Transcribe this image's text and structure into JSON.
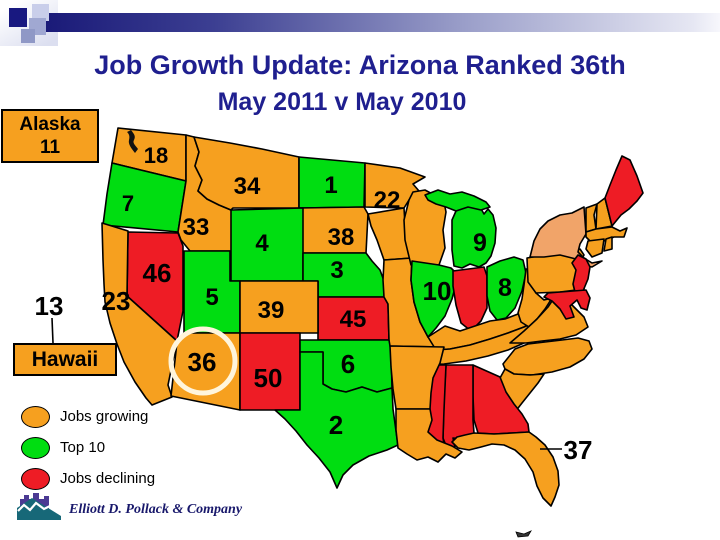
{
  "slide": {
    "title": "Job Growth Update: Arizona Ranked 36th",
    "subtitle": "May 2011 v May 2010"
  },
  "colors": {
    "growing": "#F6A01F",
    "top10": "#00DD11",
    "declining": "#EE1C25",
    "growing_light": "#F1A469",
    "title_text": "#1F1F8F",
    "highlight_ring": "#FFF5DC"
  },
  "map": {
    "alaska_box": {
      "name": "Alaska",
      "rank": "11"
    },
    "hawaii_box": {
      "name": "Hawaii",
      "rank": "13"
    },
    "highlight": {
      "state": "AZ"
    },
    "states": [
      {
        "id": "WA",
        "name": "Washington",
        "status": "growing",
        "rank": "18"
      },
      {
        "id": "OR",
        "name": "Oregon",
        "status": "top10",
        "rank": "7"
      },
      {
        "id": "ID",
        "name": "Idaho",
        "status": "growing",
        "rank": "33"
      },
      {
        "id": "MT",
        "name": "Montana",
        "status": "growing",
        "rank": "34"
      },
      {
        "id": "ND",
        "name": "North Dakota",
        "status": "top10",
        "rank": "1"
      },
      {
        "id": "MN",
        "name": "Minnesota",
        "status": "growing",
        "rank": "22"
      },
      {
        "id": "SD",
        "name": "South Dakota",
        "status": "growing",
        "rank": "38"
      },
      {
        "id": "WY",
        "name": "Wyoming",
        "status": "top10",
        "rank": "4"
      },
      {
        "id": "NE",
        "name": "Nebraska",
        "status": "top10",
        "rank": "3"
      },
      {
        "id": "KS",
        "name": "Kansas",
        "status": "declining",
        "rank": "45"
      },
      {
        "id": "NV",
        "name": "Nevada",
        "status": "declining",
        "rank": "46"
      },
      {
        "id": "UT",
        "name": "Utah",
        "status": "top10",
        "rank": "5"
      },
      {
        "id": "CA",
        "name": "California",
        "status": "growing",
        "rank": "23"
      },
      {
        "id": "CO",
        "name": "Colorado",
        "status": "growing",
        "rank": "39"
      },
      {
        "id": "AZ",
        "name": "Arizona",
        "status": "growing",
        "rank": "36"
      },
      {
        "id": "NM",
        "name": "New Mexico",
        "status": "declining",
        "rank": "50"
      },
      {
        "id": "OK",
        "name": "Oklahoma",
        "status": "top10",
        "rank": "6"
      },
      {
        "id": "TX",
        "name": "Texas",
        "status": "top10",
        "rank": "2"
      },
      {
        "id": "IA",
        "name": "Iowa",
        "status": "growing",
        "rank": null
      },
      {
        "id": "MO",
        "name": "Missouri",
        "status": "growing",
        "rank": null
      },
      {
        "id": "WI",
        "name": "Wisconsin",
        "status": "growing",
        "rank": null
      },
      {
        "id": "IL",
        "name": "Illinois",
        "status": "top10",
        "rank": "10"
      },
      {
        "id": "IN",
        "name": "Indiana",
        "status": "declining",
        "rank": null
      },
      {
        "id": "MI",
        "name": "Michigan",
        "status": "top10",
        "rank": "9",
        "parts": [
          "MI",
          "MI_UP"
        ]
      },
      {
        "id": "OH",
        "name": "Ohio",
        "status": "top10",
        "rank": "8"
      },
      {
        "id": "KY",
        "name": "Kentucky",
        "status": "growing",
        "rank": null
      },
      {
        "id": "TN",
        "name": "Tennessee",
        "status": "growing",
        "rank": null
      },
      {
        "id": "WV",
        "name": "West Virginia",
        "status": "growing",
        "rank": null
      },
      {
        "id": "VA",
        "name": "Virginia",
        "status": "growing",
        "rank": null
      },
      {
        "id": "NC",
        "name": "North Carolina",
        "status": "growing",
        "rank": null
      },
      {
        "id": "SC",
        "name": "South Carolina",
        "status": "growing",
        "rank": null
      },
      {
        "id": "GA",
        "name": "Georgia",
        "status": "declining",
        "rank": null
      },
      {
        "id": "AL",
        "name": "Alabama",
        "status": "declining",
        "rank": null
      },
      {
        "id": "MS",
        "name": "Mississippi",
        "status": "declining",
        "rank": null
      },
      {
        "id": "AR",
        "name": "Arkansas",
        "status": "growing",
        "rank": null
      },
      {
        "id": "LA",
        "name": "Louisiana",
        "status": "growing",
        "rank": null
      },
      {
        "id": "FL",
        "name": "Florida",
        "status": "growing",
        "rank": "37"
      },
      {
        "id": "PA",
        "name": "Pennsylvania",
        "status": "growing",
        "rank": null
      },
      {
        "id": "NY",
        "name": "New York",
        "status": "growing_light",
        "rank": null
      },
      {
        "id": "NJ",
        "name": "New Jersey",
        "status": "declining",
        "rank": null
      },
      {
        "id": "MDDE",
        "name": "Maryland and Delaware",
        "status": "declining",
        "rank": null
      },
      {
        "id": "VT",
        "name": "Vermont",
        "status": "growing",
        "rank": null
      },
      {
        "id": "NH",
        "name": "New Hampshire",
        "status": "growing",
        "rank": null
      },
      {
        "id": "ME",
        "name": "Maine",
        "status": "declining",
        "rank": null
      },
      {
        "id": "MA",
        "name": "Massachusetts",
        "status": "growing",
        "rank": null
      },
      {
        "id": "CT",
        "name": "Connecticut",
        "status": "growing",
        "rank": null
      },
      {
        "id": "RI",
        "name": "Rhode Island",
        "status": "growing",
        "rank": null
      }
    ]
  },
  "legend": {
    "items": [
      {
        "label": "Jobs growing",
        "status": "growing"
      },
      {
        "label": "Top 10",
        "status": "top10"
      },
      {
        "label": "Jobs declining",
        "status": "declining"
      }
    ]
  },
  "footer": {
    "company": "Elliott D. Pollack & Company"
  },
  "chart_data": {
    "type": "heatmap",
    "title": "Job Growth Update: Arizona Ranked 36th",
    "subtitle": "May 2011 v May 2010",
    "legend_entries": [
      "Jobs growing",
      "Top 10",
      "Jobs declining"
    ],
    "series": [
      {
        "state": "North Dakota",
        "rank": 1,
        "category": "top10"
      },
      {
        "state": "Texas",
        "rank": 2,
        "category": "top10"
      },
      {
        "state": "Nebraska",
        "rank": 3,
        "category": "top10"
      },
      {
        "state": "Wyoming",
        "rank": 4,
        "category": "top10"
      },
      {
        "state": "Utah",
        "rank": 5,
        "category": "top10"
      },
      {
        "state": "Oklahoma",
        "rank": 6,
        "category": "top10"
      },
      {
        "state": "Oregon",
        "rank": 7,
        "category": "top10"
      },
      {
        "state": "Ohio",
        "rank": 8,
        "category": "top10"
      },
      {
        "state": "Michigan",
        "rank": 9,
        "category": "top10"
      },
      {
        "state": "Illinois",
        "rank": 10,
        "category": "top10"
      },
      {
        "state": "Alaska",
        "rank": 11,
        "category": "growing"
      },
      {
        "state": "Hawaii",
        "rank": 13,
        "category": "growing"
      },
      {
        "state": "Washington",
        "rank": 18,
        "category": "growing"
      },
      {
        "state": "Minnesota",
        "rank": 22,
        "category": "growing"
      },
      {
        "state": "California",
        "rank": 23,
        "category": "growing"
      },
      {
        "state": "Idaho",
        "rank": 33,
        "category": "growing"
      },
      {
        "state": "Montana",
        "rank": 34,
        "category": "growing"
      },
      {
        "state": "Arizona",
        "rank": 36,
        "category": "growing"
      },
      {
        "state": "Florida",
        "rank": 37,
        "category": "growing"
      },
      {
        "state": "South Dakota",
        "rank": 38,
        "category": "growing"
      },
      {
        "state": "Colorado",
        "rank": 39,
        "category": "growing"
      },
      {
        "state": "Kansas",
        "rank": 45,
        "category": "declining"
      },
      {
        "state": "Nevada",
        "rank": 46,
        "category": "declining"
      },
      {
        "state": "New Mexico",
        "rank": 50,
        "category": "declining"
      }
    ]
  }
}
